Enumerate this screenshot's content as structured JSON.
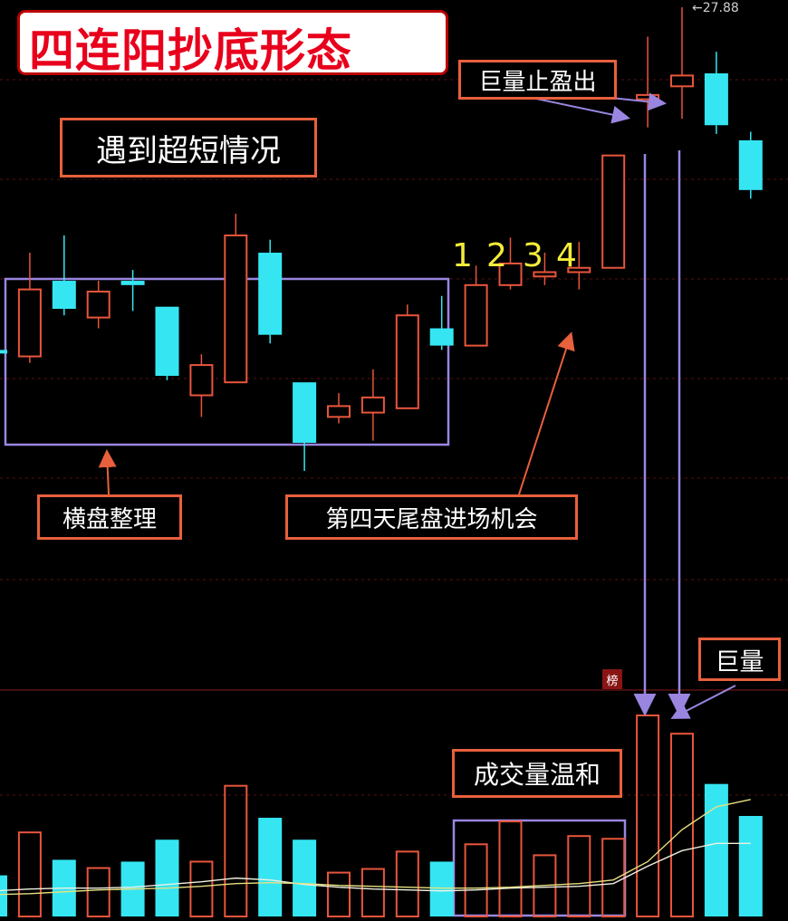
{
  "title": "四连阳抄底形态",
  "annotations": {
    "subtitle": "遇到超短情况",
    "consolidation": "横盘整理",
    "entry": "第四天尾盘进场机会",
    "take_profit": "巨量止盈出",
    "mild_volume": "成交量温和",
    "huge_volume": "巨量",
    "day_labels": [
      "1",
      "2",
      "3",
      "4"
    ],
    "high_price": "27.88",
    "list_badge": "榜"
  },
  "colors": {
    "up": "#e8553c",
    "down": "#35e6f2",
    "ma_white": "#f0f0e0",
    "ma_yellow": "#e8e080",
    "box": "#9a86e0",
    "label_border": "#e8603c",
    "title_text": "#e8001c",
    "number": "#f4ec3a"
  },
  "chart_data": {
    "type": "candlestick",
    "note_units": "price values are relative price levels; the chart prints no axis",
    "high_max": 27.88,
    "candles": [
      {
        "o": 19.95,
        "c": 19.95,
        "h": 19.95,
        "l": 19.95,
        "up": false
      },
      {
        "o": 19.8,
        "c": 21.35,
        "h": 22.2,
        "l": 19.65,
        "up": true
      },
      {
        "o": 21.55,
        "c": 20.9,
        "h": 22.6,
        "l": 20.75,
        "up": false
      },
      {
        "o": 20.7,
        "c": 21.3,
        "h": 21.55,
        "l": 20.45,
        "up": true
      },
      {
        "o": 21.55,
        "c": 21.45,
        "h": 21.8,
        "l": 20.85,
        "up": false
      },
      {
        "o": 20.95,
        "c": 19.35,
        "h": 20.95,
        "l": 19.25,
        "up": false
      },
      {
        "o": 18.9,
        "c": 19.6,
        "h": 19.85,
        "l": 18.4,
        "up": true
      },
      {
        "o": 19.2,
        "c": 22.6,
        "h": 23.1,
        "l": 19.2,
        "up": true
      },
      {
        "o": 22.2,
        "c": 20.3,
        "h": 22.5,
        "l": 20.1,
        "up": false
      },
      {
        "o": 19.2,
        "c": 17.8,
        "h": 19.2,
        "l": 17.15,
        "up": false
      },
      {
        "o": 18.4,
        "c": 18.65,
        "h": 18.95,
        "l": 18.25,
        "up": true
      },
      {
        "o": 18.5,
        "c": 18.85,
        "h": 19.5,
        "l": 17.85,
        "up": true
      },
      {
        "o": 18.6,
        "c": 20.75,
        "h": 21.0,
        "l": 18.6,
        "up": true
      },
      {
        "o": 20.45,
        "c": 20.05,
        "h": 21.2,
        "l": 19.95,
        "up": false
      },
      {
        "o": 20.05,
        "c": 21.45,
        "h": 21.9,
        "l": 20.05,
        "up": true
      },
      {
        "o": 21.45,
        "c": 21.95,
        "h": 22.55,
        "l": 21.35,
        "up": true
      },
      {
        "o": 21.65,
        "c": 21.75,
        "h": 22.2,
        "l": 21.45,
        "up": true
      },
      {
        "o": 21.75,
        "c": 21.85,
        "h": 22.45,
        "l": 21.35,
        "up": true
      },
      {
        "o": 21.85,
        "c": 24.45,
        "h": 24.45,
        "l": 21.85,
        "up": true
      },
      {
        "o": 25.75,
        "c": 25.85,
        "h": 27.2,
        "l": 25.1,
        "up": true
      },
      {
        "o": 26.05,
        "c": 26.3,
        "h": 27.88,
        "l": 25.3,
        "up": true
      },
      {
        "o": 26.35,
        "c": 25.15,
        "h": 26.85,
        "l": 24.95,
        "up": false
      },
      {
        "o": 24.8,
        "c": 23.65,
        "h": 25.0,
        "l": 23.45,
        "up": false
      }
    ],
    "volume": [
      {
        "v": 45,
        "up": false
      },
      {
        "v": 92,
        "up": true
      },
      {
        "v": 62,
        "up": false
      },
      {
        "v": 53,
        "up": true
      },
      {
        "v": 60,
        "up": false
      },
      {
        "v": 84,
        "up": false
      },
      {
        "v": 60,
        "up": true
      },
      {
        "v": 143,
        "up": true
      },
      {
        "v": 108,
        "up": false
      },
      {
        "v": 84,
        "up": false
      },
      {
        "v": 48,
        "up": true
      },
      {
        "v": 52,
        "up": true
      },
      {
        "v": 71,
        "up": true
      },
      {
        "v": 60,
        "up": false
      },
      {
        "v": 79,
        "up": true
      },
      {
        "v": 104,
        "up": true
      },
      {
        "v": 67,
        "up": true
      },
      {
        "v": 88,
        "up": true
      },
      {
        "v": 85,
        "up": true
      },
      {
        "v": 220,
        "up": true
      },
      {
        "v": 200,
        "up": true
      },
      {
        "v": 145,
        "up": false
      },
      {
        "v": 110,
        "up": false
      }
    ],
    "vol_max": 230,
    "ma_white": [
      28,
      30,
      31,
      31,
      32,
      35,
      38,
      42,
      40,
      35,
      32,
      30,
      29,
      28,
      29,
      31,
      32,
      33,
      36,
      55,
      72,
      80,
      80
    ],
    "ma_yellow": [
      24,
      25,
      27,
      29,
      30,
      31,
      33,
      36,
      37,
      36,
      34,
      33,
      32,
      31,
      31,
      32,
      34,
      36,
      40,
      60,
      95,
      120,
      128
    ]
  }
}
